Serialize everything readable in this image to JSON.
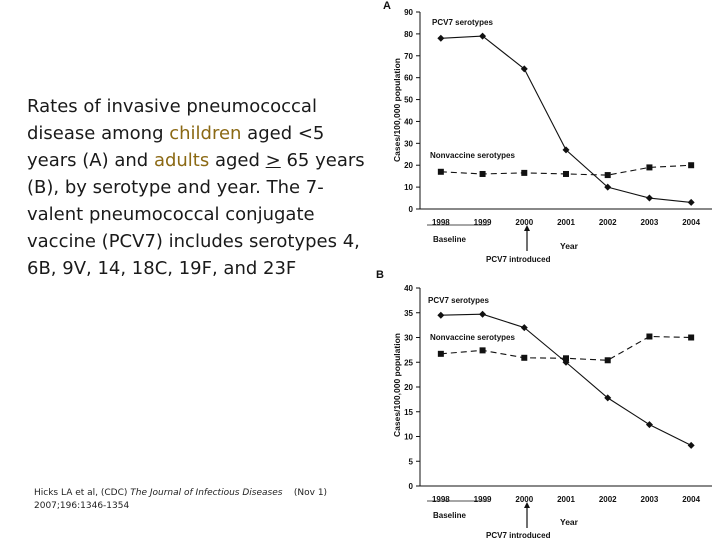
{
  "caption": {
    "p1": "Rates of invasive pneumococcal disease among ",
    "children": "children",
    "p2": " aged <5 years (A) and ",
    "adults": "adults",
    "p3": " aged ",
    "ge": ">",
    "p4": " 65 years (B), by serotype and year. The 7-valent pneumococcal conjugate vaccine (PCV7) includes serotypes 4, 6B, 9V, 14, 18C, 19F, and 23F"
  },
  "citation": {
    "authors": "Hicks LA et al, (CDC) ",
    "journal": "The Journal of Infectious Diseases",
    "date": "(Nov 1)",
    "ref": "2007;196:1346-1354"
  },
  "colors": {
    "text": "#1a1a1a",
    "highlight": "#8b6914",
    "series": "#111111"
  },
  "chart_data": [
    {
      "panel": "A",
      "type": "line",
      "x": [
        "1998",
        "1999",
        "2000",
        "2001",
        "2002",
        "2003",
        "2004"
      ],
      "ylim": [
        0,
        90
      ],
      "yticks": [
        0,
        10,
        20,
        30,
        40,
        50,
        60,
        70,
        80,
        90
      ],
      "ylabel": "Cases/100,000 population",
      "xlabel": "Year",
      "baseline_label": "Baseline",
      "annotation": "PCV7  introduced",
      "series": [
        {
          "name": "PCV7 serotypes",
          "marker": "diamond",
          "dash": "solid",
          "values": [
            78,
            79,
            64,
            27,
            10,
            5,
            3
          ]
        },
        {
          "name": "Nonvaccine serotypes",
          "marker": "square",
          "dash": "dashed",
          "values": [
            17,
            16,
            16.5,
            16,
            15.5,
            19,
            20
          ]
        }
      ]
    },
    {
      "panel": "B",
      "type": "line",
      "x": [
        "1998",
        "1999",
        "2000",
        "2001",
        "2002",
        "2003",
        "2004"
      ],
      "ylim": [
        0,
        40
      ],
      "yticks": [
        0,
        5,
        10,
        15,
        20,
        25,
        30,
        35,
        40
      ],
      "ylabel": "Cases/100,000 population",
      "xlabel": "Year",
      "baseline_label": "Baseline",
      "annotation": "PCV7  introduced",
      "series": [
        {
          "name": "PCV7 serotypes",
          "marker": "diamond",
          "dash": "solid",
          "values": [
            34.5,
            34.7,
            32,
            25,
            17.8,
            12.4,
            8.2
          ]
        },
        {
          "name": "Nonvaccine serotypes",
          "marker": "square",
          "dash": "dashed",
          "values": [
            26.7,
            27.4,
            25.9,
            25.8,
            25.4,
            30.2,
            30
          ]
        }
      ]
    }
  ]
}
